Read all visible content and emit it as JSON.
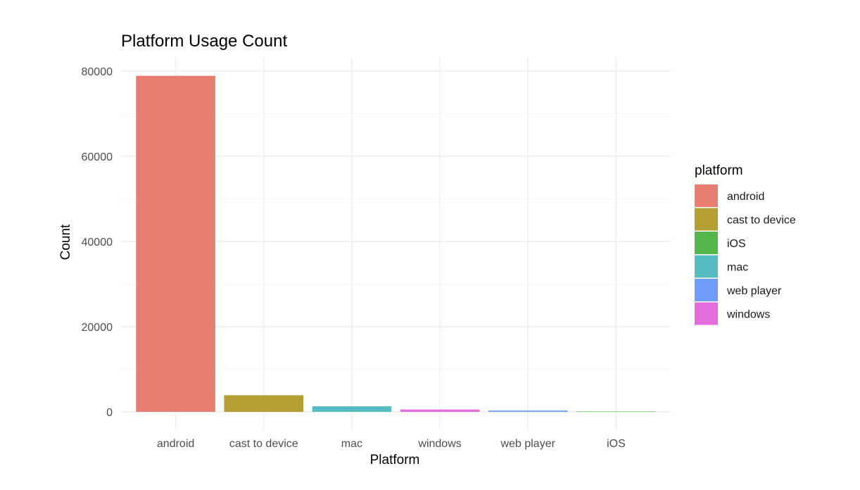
{
  "chart_data": {
    "type": "bar",
    "title": "Platform Usage Count",
    "xlabel": "Platform",
    "ylabel": "Count",
    "categories": [
      "android",
      "cast to device",
      "mac",
      "windows",
      "web player",
      "iOS"
    ],
    "values": [
      78900,
      3900,
      1300,
      550,
      300,
      30
    ],
    "ylim": [
      0,
      80000
    ],
    "yticks": [
      0,
      20000,
      40000,
      60000,
      80000
    ],
    "ytick_labels": [
      "0",
      "20000",
      "40000",
      "60000",
      "80000"
    ],
    "grid": true,
    "legend": {
      "title": "platform",
      "position": "right",
      "entries": [
        "android",
        "cast to device",
        "iOS",
        "mac",
        "web player",
        "windows"
      ]
    },
    "colors": {
      "android": "#e87d72",
      "cast to device": "#b69f32",
      "iOS": "#53b74c",
      "mac": "#56bcc2",
      "web player": "#6f9df8",
      "windows": "#e46ddd"
    }
  }
}
